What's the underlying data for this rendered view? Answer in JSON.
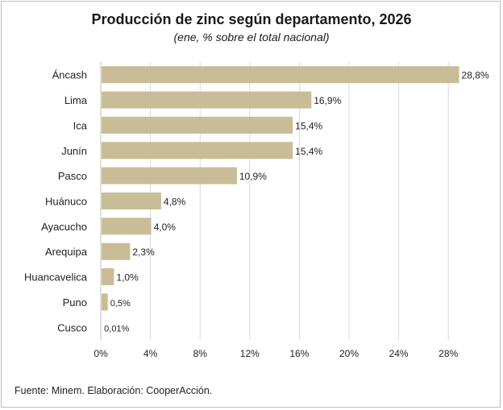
{
  "chart_data": {
    "type": "bar",
    "orientation": "horizontal",
    "title": "Producción de zinc según departamento, 2026",
    "subtitle": "(ene, % sobre el total nacional)",
    "categories": [
      "Áncash",
      "Lima",
      "Ica",
      "Junín",
      "Pasco",
      "Huánuco",
      "Ayacucho",
      "Arequipa",
      "Huancavelica",
      "Puno",
      "Cusco"
    ],
    "values": [
      28.8,
      16.9,
      15.4,
      15.4,
      10.9,
      4.8,
      4.0,
      2.3,
      1.0,
      0.5,
      0.01
    ],
    "value_labels": [
      "28,8%",
      "16,9%",
      "15,4%",
      "15,4%",
      "10,9%",
      "4,8%",
      "4,0%",
      "2,3%",
      "1,0%",
      "0,5%",
      "0,01%"
    ],
    "xlim": [
      0,
      30
    ],
    "x_ticks": [
      0,
      4,
      8,
      12,
      16,
      20,
      24,
      28
    ],
    "x_tick_labels": [
      "0%",
      "4%",
      "8%",
      "12%",
      "16%",
      "20%",
      "24%",
      "28%"
    ],
    "grid": "vertical",
    "bar_color": "#c8bd96",
    "grid_color": "#d9d9d9"
  },
  "source_note": "Fuente: Minem. Elaboración: CooperAcción."
}
